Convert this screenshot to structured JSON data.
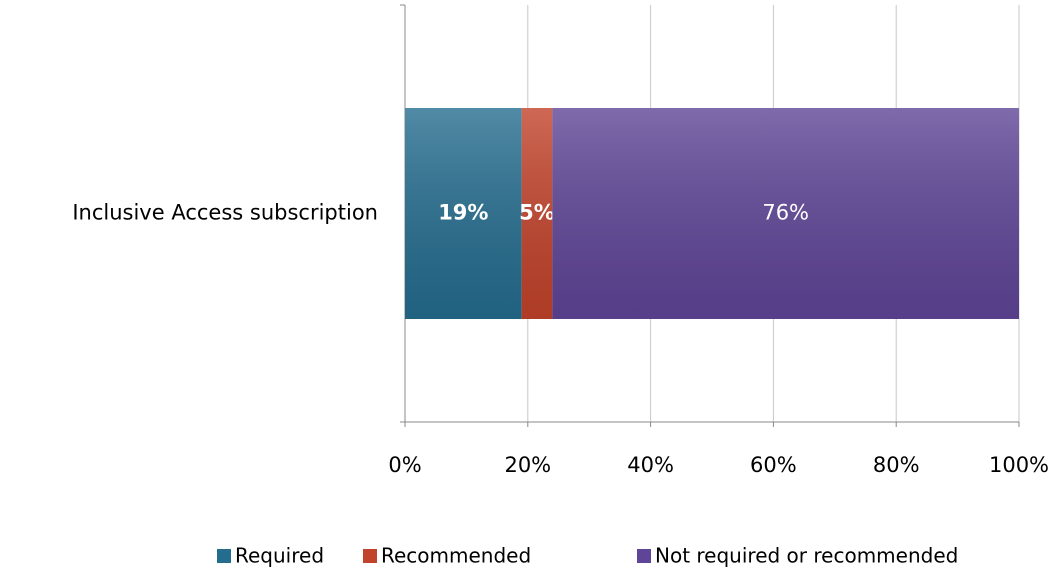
{
  "chart_data": {
    "type": "stacked-barh",
    "categories": [
      "Inclusive Access subscription"
    ],
    "series": [
      {
        "name": "Required",
        "color": "#256d8f",
        "values": [
          19
        ],
        "value_labels": [
          "19%"
        ]
      },
      {
        "name": "Recommended",
        "color": "#c2432b",
        "values": [
          5
        ],
        "value_labels": [
          "5%"
        ]
      },
      {
        "name": "Not required or recommended",
        "color": "#5f4597",
        "values": [
          76
        ],
        "value_labels": [
          "76%"
        ]
      }
    ],
    "xlim": [
      0,
      100
    ],
    "xticks": [
      {
        "value": 0,
        "label": "0%"
      },
      {
        "value": 20,
        "label": "20%"
      },
      {
        "value": 40,
        "label": "40%"
      },
      {
        "value": 60,
        "label": "60%"
      },
      {
        "value": 80,
        "label": "80%"
      },
      {
        "value": 100,
        "label": "100%"
      }
    ],
    "grid": true,
    "legend": "bottom"
  }
}
